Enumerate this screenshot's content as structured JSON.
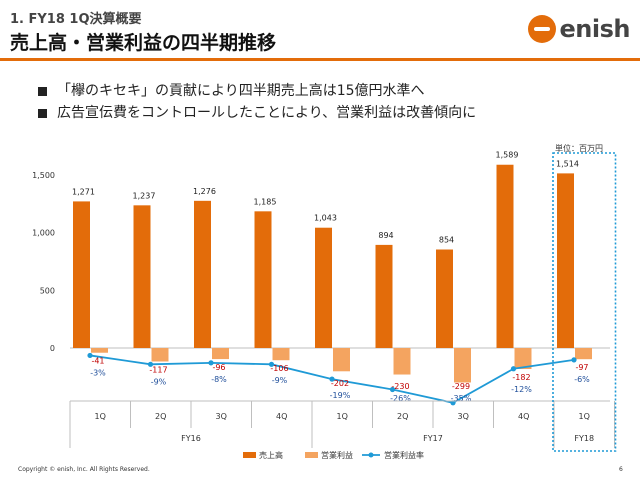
{
  "header": {
    "subtitle": "1. FY18 1Q決算概要",
    "title": "売上高・営業利益の四半期推移",
    "logo_text": "enish"
  },
  "bullets": [
    "「欅のキセキ」の貢献により四半期売上高は15億円水準へ",
    "広告宣伝費をコントロールしたことにより、営業利益は改善傾向に"
  ],
  "unit_label": "単位：百万円",
  "footer": {
    "copyright": "Copyright © enish, Inc. All Rights Reserved.",
    "page": "6"
  },
  "colors": {
    "accent": "#e36c0a",
    "sales": "#e36c0a",
    "profit": "#f4a460",
    "margin_line": "#1f9ad6",
    "highlight_box": "#1f9ad6"
  },
  "chart_data": {
    "type": "bar",
    "quarters": [
      "1Q",
      "2Q",
      "3Q",
      "4Q",
      "1Q",
      "2Q",
      "3Q",
      "4Q",
      "1Q"
    ],
    "fiscal_years": [
      {
        "label": "FY16",
        "span": [
          0,
          3
        ]
      },
      {
        "label": "FY17",
        "span": [
          4,
          7
        ]
      },
      {
        "label": "FY18",
        "span": [
          8,
          8
        ]
      }
    ],
    "series": [
      {
        "name": "売上高",
        "type": "bar",
        "color": "#e36c0a",
        "values": [
          1271,
          1237,
          1276,
          1185,
          1043,
          894,
          854,
          1589,
          1514
        ],
        "labels": [
          "1,271",
          "1,237",
          "1,276",
          "1,185",
          "1,043",
          "894",
          "854",
          "1,589",
          "1,514"
        ]
      },
      {
        "name": "営業利益",
        "type": "bar",
        "color": "#f4a460",
        "values": [
          -41,
          -117,
          -96,
          -106,
          -202,
          -230,
          -299,
          -182,
          -97
        ],
        "labels": [
          "-41",
          "-117",
          "-96",
          "-106",
          "-202",
          "-230",
          "-299",
          "-182",
          "-97"
        ]
      },
      {
        "name": "営業利益率",
        "type": "line",
        "color": "#1f9ad6",
        "values": [
          -3,
          -9,
          -8,
          -9,
          -19,
          -26,
          -35,
          -12,
          -6
        ],
        "labels": [
          "-3%",
          "-9%",
          "-8%",
          "-9%",
          "-19%",
          "-26%",
          "-35%",
          "-12%",
          "-6%"
        ]
      }
    ],
    "y_ticks": [
      {
        "value": 0,
        "label": "0"
      },
      {
        "value": 500,
        "label": "500"
      },
      {
        "value": 1000,
        "label": "1,000"
      },
      {
        "value": 1500,
        "label": "1,500"
      }
    ],
    "ylim": [
      -300,
      1700
    ],
    "highlight_index": 8,
    "legend_position": "bottom"
  }
}
